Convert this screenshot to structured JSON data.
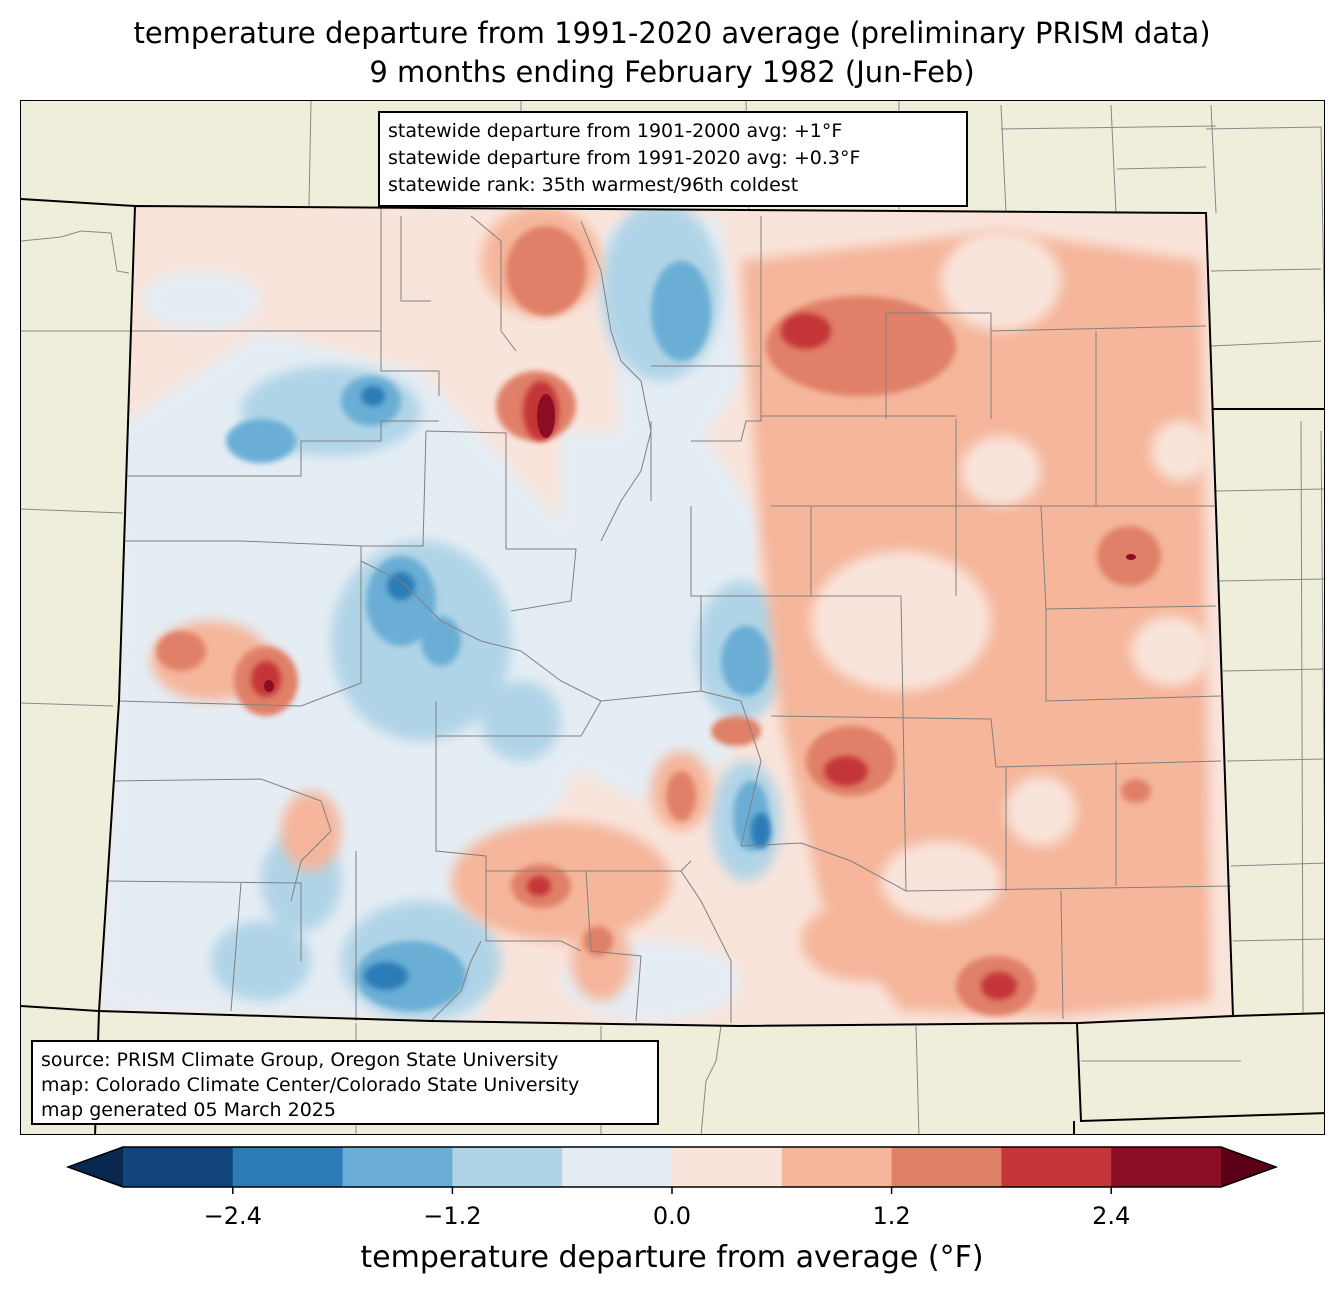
{
  "title": {
    "line1": "temperature departure from 1991-2020 average (preliminary PRISM data)",
    "line2": "9 months ending February 1982 (Jun-Feb)"
  },
  "stats": {
    "line1": "statewide departure from 1901-2000 avg: +1°F",
    "line2": "statewide departure from 1991-2020 avg: +0.3°F",
    "line3": "statewide rank: 35th warmest/96th coldest"
  },
  "source": {
    "line1": "source: PRISM Climate Group, Oregon State University",
    "line2": "map: Colorado Climate Center/Colorado State University",
    "line3": "map generated 05 March 2025"
  },
  "colorbar": {
    "label": "temperature departure from average (°F)",
    "min_value": -3.0,
    "max_value": 3.0,
    "step": 0.6,
    "colors": [
      "#13457d",
      "#2c7bb7",
      "#6aaed5",
      "#b0d4e7",
      "#e5edf4",
      "#f9e4db",
      "#f5b69b",
      "#e08067",
      "#c43638",
      "#8a0d23"
    ],
    "extend_low_color": "#08284f",
    "extend_high_color": "#5c0018",
    "ticks": [
      {
        "value": -2.4,
        "label": "−2.4"
      },
      {
        "value": -1.2,
        "label": "−1.2"
      },
      {
        "value": 0.0,
        "label": "0.0"
      },
      {
        "value": 1.2,
        "label": "1.2"
      },
      {
        "value": 2.4,
        "label": "2.4"
      }
    ]
  },
  "map_colors": {
    "land": "#efeedb",
    "state_fill": "#f9e4db",
    "county_lines": "#808080",
    "state_border": "#000000"
  }
}
